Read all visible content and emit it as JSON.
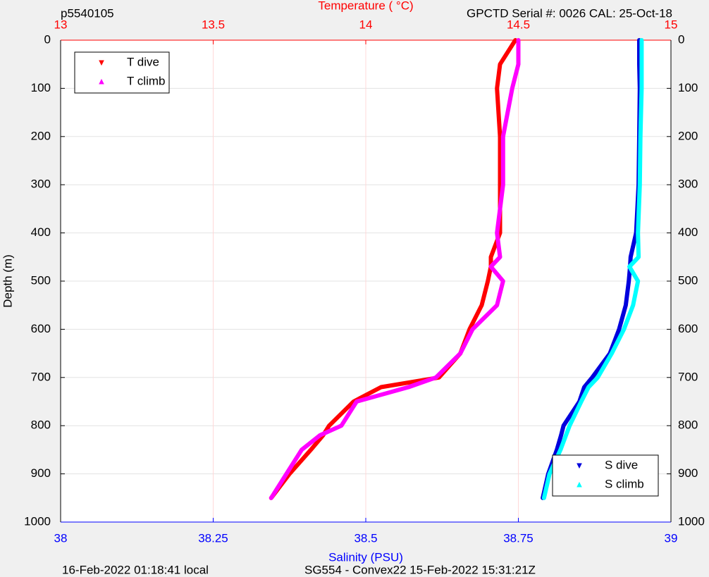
{
  "chart_data": {
    "type": "profile",
    "title_left": "p5540105",
    "title_right": "GPCTD Serial #: 0026 CAL: 25-Oct-18",
    "xlabel": "Temperature (   °C)",
    "x2label": "Salinity (PSU)",
    "ylabel": "Depth (m)",
    "footer_left": "16-Feb-2022 01:18:41 local",
    "footer_right": "SG554 - Convex22 15-Feb-2022 15:31:21Z",
    "y": [
      0,
      50,
      100,
      200,
      300,
      400,
      450,
      470,
      500,
      550,
      600,
      650,
      700,
      720,
      750,
      800,
      820,
      850,
      900,
      950
    ],
    "ylim": [
      0,
      1000
    ],
    "yticks": [
      0,
      100,
      200,
      300,
      400,
      500,
      600,
      700,
      800,
      900,
      1000
    ],
    "y_reversed": true,
    "xlim": [
      13,
      15
    ],
    "xticks": [
      13,
      13.5,
      14,
      14.5,
      15
    ],
    "x2lim": [
      38,
      39
    ],
    "x2ticks": [
      38,
      38.25,
      38.5,
      38.75,
      39
    ],
    "grid": true,
    "series": [
      {
        "name": "T dive",
        "color": "#ff0000",
        "axis": "x",
        "legend": "upper left",
        "values": [
          14.49,
          14.44,
          14.43,
          14.44,
          14.44,
          14.44,
          14.41,
          14.41,
          14.4,
          14.38,
          14.34,
          14.31,
          14.24,
          14.05,
          13.96,
          13.88,
          13.86,
          13.82,
          13.75,
          13.69
        ]
      },
      {
        "name": "T climb",
        "color": "#ff00ff",
        "axis": "x",
        "legend": "upper left",
        "values": [
          14.5,
          14.5,
          14.48,
          14.45,
          14.45,
          14.43,
          14.44,
          14.41,
          14.45,
          14.43,
          14.35,
          14.31,
          14.23,
          14.14,
          13.97,
          13.92,
          13.85,
          13.79,
          13.74,
          13.69
        ]
      },
      {
        "name": "S dive",
        "color": "#0000dd",
        "axis": "x2",
        "legend": "lower right",
        "values": [
          38.948,
          38.948,
          38.949,
          38.948,
          38.947,
          38.943,
          38.934,
          38.933,
          38.931,
          38.926,
          38.915,
          38.9,
          38.871,
          38.858,
          38.85,
          38.824,
          38.82,
          38.813,
          38.799,
          38.79
        ]
      },
      {
        "name": "S climb",
        "color": "#00ffff",
        "axis": "x2",
        "legend": "lower right",
        "values": [
          38.952,
          38.952,
          38.952,
          38.95,
          38.949,
          38.946,
          38.947,
          38.932,
          38.946,
          38.938,
          38.923,
          38.903,
          38.88,
          38.865,
          38.853,
          38.834,
          38.828,
          38.819,
          38.801,
          38.792
        ]
      }
    ]
  }
}
